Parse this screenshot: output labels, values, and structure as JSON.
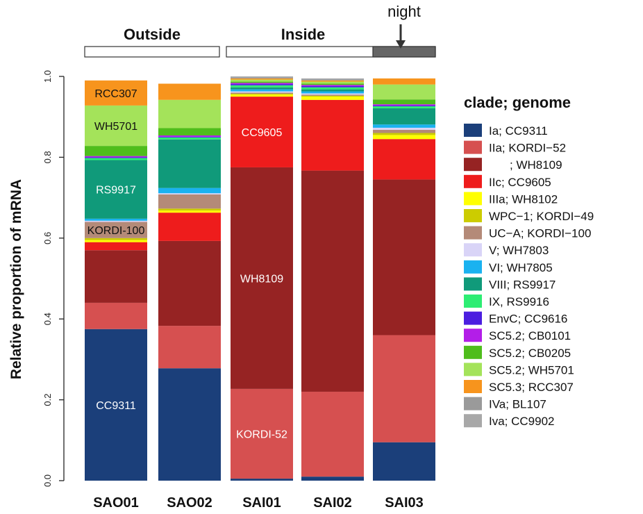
{
  "chart_data": {
    "type": "bar",
    "stacked": true,
    "title": "",
    "xlabel": "",
    "ylabel": "Relative proportion of mRNA",
    "ylim": [
      0,
      1
    ],
    "yticks": [
      "0.0",
      "0.2",
      "0.4",
      "0.6",
      "0.8",
      "1.0"
    ],
    "categories": [
      "SAO01",
      "SAO02",
      "SAI01",
      "SAI02",
      "SAI03"
    ],
    "groups": [
      {
        "label": "Outside",
        "categories": [
          "SAO01",
          "SAO02"
        ]
      },
      {
        "label": "Inside",
        "categories": [
          "SAI01",
          "SAI02",
          "SAI03"
        ]
      }
    ],
    "night_annotation": {
      "label": "night",
      "category": "SAI03"
    },
    "legend_title": "clade; genome",
    "legend_position": "right",
    "series": [
      {
        "name": "Ia; CC9311",
        "color": "#1b3f7a",
        "values": [
          0.375,
          0.278,
          0.005,
          0.01,
          0.095
        ]
      },
      {
        "name": "IIa; KORDI−52",
        "color": "#d65050",
        "values": [
          0.065,
          0.105,
          0.222,
          0.21,
          0.265
        ]
      },
      {
        "name": "; WH8109",
        "color": "#962323",
        "values": [
          0.13,
          0.21,
          0.548,
          0.547,
          0.385
        ]
      },
      {
        "name": "IIc; CC9605",
        "color": "#ee1c1c",
        "values": [
          0.02,
          0.07,
          0.175,
          0.175,
          0.1
        ]
      },
      {
        "name": "IIIa; WH8102",
        "color": "#ffff00",
        "values": [
          0.005,
          0.005,
          0.005,
          0.008,
          0.01
        ]
      },
      {
        "name": "WPC−1; KORDI−49",
        "color": "#cccc00",
        "values": [
          0.005,
          0.005,
          0.002,
          0.002,
          0.005
        ]
      },
      {
        "name": "UC−A; KORDI−100",
        "color": "#b48a78",
        "values": [
          0.04,
          0.035,
          0.003,
          0.003,
          0.008
        ]
      },
      {
        "name": "V; WH7803",
        "color": "#d9d4f7",
        "values": [
          0.003,
          0.003,
          0.003,
          0.003,
          0.005
        ]
      },
      {
        "name": "VI; WH7805",
        "color": "#1ab2f0",
        "values": [
          0.005,
          0.013,
          0.005,
          0.005,
          0.008
        ]
      },
      {
        "name": "VIII; RS9917",
        "color": "#109a7a",
        "values": [
          0.145,
          0.12,
          0.005,
          0.005,
          0.04
        ]
      },
      {
        "name": "IX, RS9916",
        "color": "#2ded73",
        "values": [
          0.005,
          0.005,
          0.005,
          0.005,
          0.005
        ]
      },
      {
        "name": "EnvC; CC9616",
        "color": "#4b1ee0",
        "values": [
          0.002,
          0.002,
          0.003,
          0.003,
          0.002
        ]
      },
      {
        "name": "SC5.2; CB0101",
        "color": "#b31ee8",
        "values": [
          0.003,
          0.003,
          0.003,
          0.003,
          0.003
        ]
      },
      {
        "name": "SC5.2; CB0205",
        "color": "#4fbd1c",
        "values": [
          0.025,
          0.018,
          0.003,
          0.003,
          0.012
        ]
      },
      {
        "name": "SC5.2; WH5701",
        "color": "#a4e35a",
        "values": [
          0.1,
          0.07,
          0.005,
          0.005,
          0.037
        ]
      },
      {
        "name": "SC5.3; RCC307",
        "color": "#f7941d",
        "values": [
          0.062,
          0.04,
          0.003,
          0.003,
          0.015
        ]
      },
      {
        "name": "IVa; BL107",
        "color": "#9a9a9a",
        "values": [
          0.0,
          0.0,
          0.003,
          0.003,
          0.0
        ]
      },
      {
        "name": "Iva; CC9902",
        "color": "#a8a8a8",
        "values": [
          0.0,
          0.0,
          0.002,
          0.002,
          0.0
        ]
      }
    ],
    "segment_labels": [
      {
        "category": "SAO01",
        "series": "Ia; CC9311",
        "text": "CC9311",
        "color": "#ffffff"
      },
      {
        "category": "SAO01",
        "series": "VIII; RS9917",
        "text": "RS9917",
        "color": "#ffffff"
      },
      {
        "category": "SAO01",
        "series": "UC−A; KORDI−100",
        "text": "KORDI-100",
        "color": "#111111"
      },
      {
        "category": "SAO01",
        "series": "SC5.2; WH5701",
        "text": "WH5701",
        "color": "#111111"
      },
      {
        "category": "SAO01",
        "series": "SC5.3; RCC307",
        "text": "RCC307",
        "color": "#111111"
      },
      {
        "category": "SAI01",
        "series": "IIa; KORDI−52",
        "text": "KORDI-52",
        "color": "#ffffff"
      },
      {
        "category": "SAI01",
        "series": "; WH8109",
        "text": "WH8109",
        "color": "#ffffff"
      },
      {
        "category": "SAI01",
        "series": "IIc; CC9605",
        "text": "CC9605",
        "color": "#ffffff"
      }
    ]
  }
}
